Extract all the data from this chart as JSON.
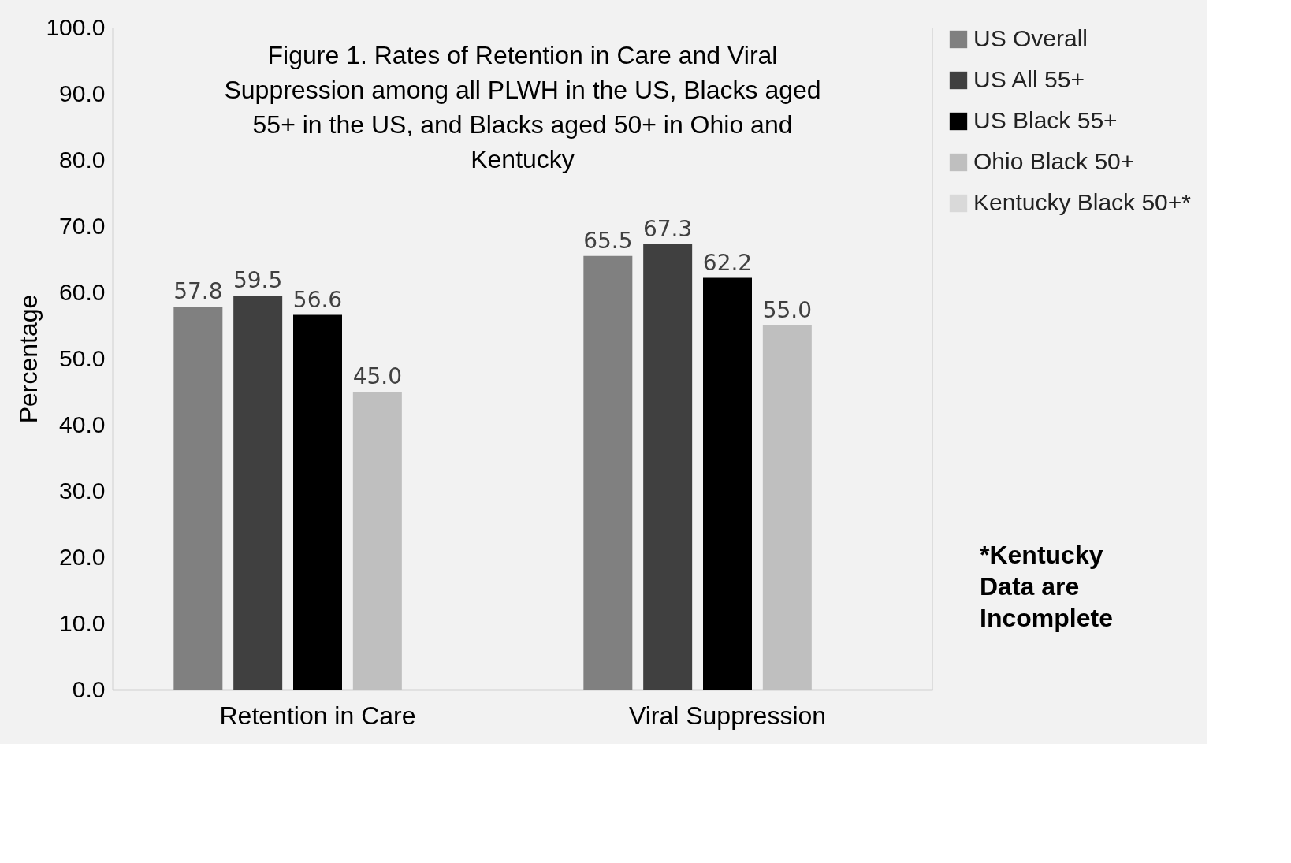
{
  "chart_data": {
    "type": "bar",
    "title": "Figure 1. Rates of Retention in Care and Viral Suppression among all PLWH in the US, Blacks aged 55+ in the US, and Blacks aged 50+ in Ohio and Kentucky",
    "ylabel": "Percentage",
    "categories": [
      "Retention in Care",
      "Viral Suppression"
    ],
    "series": [
      {
        "name": "US Overall",
        "color": "#808080",
        "values": [
          57.8,
          65.5
        ],
        "value_labels": [
          "57.8",
          "65.5"
        ]
      },
      {
        "name": "US All 55+",
        "color": "#404040",
        "values": [
          59.5,
          67.3
        ],
        "value_labels": [
          "59.5",
          "67.3"
        ]
      },
      {
        "name": "US Black 55+",
        "color": "#000000",
        "values": [
          56.6,
          62.2
        ],
        "value_labels": [
          "56.6",
          "62.2"
        ]
      },
      {
        "name": "Ohio Black 50+",
        "color": "#bfbfbf",
        "values": [
          45.0,
          55.0
        ],
        "value_labels": [
          "45.0",
          "55.0"
        ]
      },
      {
        "name": "Kentucky Black 50+*",
        "color": "#d9d9d9",
        "values": [
          null,
          null
        ]
      }
    ],
    "ylim": [
      0,
      100
    ],
    "yticks": [
      {
        "value": 0,
        "label": "0.0"
      },
      {
        "value": 10,
        "label": "10.0"
      },
      {
        "value": 20,
        "label": "20.0"
      },
      {
        "value": 30,
        "label": "30.0"
      },
      {
        "value": 40,
        "label": "40.0"
      },
      {
        "value": 50,
        "label": "50.0"
      },
      {
        "value": 60,
        "label": "60.0"
      },
      {
        "value": 70,
        "label": "70.0"
      },
      {
        "value": 80,
        "label": "80.0"
      },
      {
        "value": 90,
        "label": "90.0"
      },
      {
        "value": 100,
        "label": "100.0"
      }
    ],
    "grid": false,
    "legend": "right",
    "annotations": [
      "*Kentucky Data are Incomplete"
    ]
  }
}
